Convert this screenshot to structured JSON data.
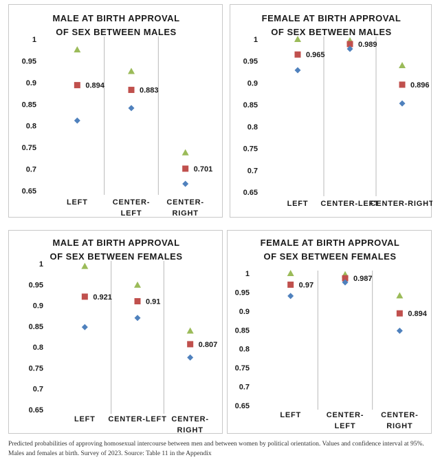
{
  "colors": {
    "upper": "#9bbb59",
    "point": "#c0504d",
    "lower": "#4f81bd",
    "divider": "#b8b8b8"
  },
  "caption": "Predicted probabilities of approving homosexual intercourse between men and between women by political orientation. Values and confidence interval at 95%. Males and females at birth. Survey of 2023. Source: Table 11 in the Appendix",
  "chart_data": [
    {
      "type": "scatter",
      "title": [
        "MALE AT BIRTH APPROVAL",
        "OF  SEX BETWEEN MALES"
      ],
      "categories": [
        [
          "LEFT"
        ],
        [
          "CENTER-",
          "LEFT"
        ],
        [
          "CENTER-",
          "RIGHT"
        ]
      ],
      "ylim": [
        0.65,
        1
      ],
      "yticks": [
        "1",
        "0.95",
        "0.9",
        "0.85",
        "0.8",
        "0.75",
        "0.7",
        "0.65"
      ],
      "series": [
        {
          "role": "upper",
          "values": [
            0.976,
            0.926,
            0.738
          ]
        },
        {
          "role": "point",
          "values": [
            0.894,
            0.883,
            0.701
          ],
          "labels": [
            "0.894",
            "0.883",
            "0.701"
          ]
        },
        {
          "role": "lower",
          "values": [
            0.812,
            0.841,
            0.666
          ]
        }
      ]
    },
    {
      "type": "scatter",
      "title": [
        "FEMALE AT BIRTH APPROVAL",
        "OF SEX BETWEEN MALES"
      ],
      "categories": [
        [
          "LEFT"
        ],
        [
          "CENTER-LEFT"
        ],
        [
          "CENTER-RIGHT"
        ]
      ],
      "ylim": [
        0.65,
        1
      ],
      "yticks": [
        "1",
        "0.95",
        "0.9",
        "0.85",
        "0.8",
        "0.75",
        "0.7",
        "0.65"
      ],
      "series": [
        {
          "role": "upper",
          "values": [
            1.0,
            0.997,
            0.94
          ]
        },
        {
          "role": "point",
          "values": [
            0.965,
            0.989,
            0.896
          ],
          "labels": [
            "0.965",
            "0.989",
            "0.896"
          ]
        },
        {
          "role": "lower",
          "values": [
            0.929,
            0.978,
            0.853
          ]
        }
      ]
    },
    {
      "type": "scatter",
      "title": [
        "MALE AT BIRTH APPROVAL",
        "OF SEX BETWEEN FEMALES"
      ],
      "categories": [
        [
          "LEFT"
        ],
        [
          "CENTER-LEFT"
        ],
        [
          "CENTER-",
          "RIGHT"
        ]
      ],
      "ylim": [
        0.65,
        1
      ],
      "yticks": [
        "1",
        "0.95",
        "0.9",
        "0.85",
        "0.8",
        "0.75",
        "0.7",
        "0.65"
      ],
      "series": [
        {
          "role": "upper",
          "values": [
            0.994,
            0.949,
            0.839
          ]
        },
        {
          "role": "point",
          "values": [
            0.921,
            0.91,
            0.807
          ],
          "labels": [
            "0.921",
            "0.91",
            "0.807"
          ]
        },
        {
          "role": "lower",
          "values": [
            0.848,
            0.87,
            0.775
          ]
        }
      ]
    },
    {
      "type": "scatter",
      "title": [
        "FEMALE AT BIRTH APPROVAL",
        "OF SEX BETWEEN FEMALES"
      ],
      "categories": [
        [
          "LEFT"
        ],
        [
          "CENTER-",
          "LEFT"
        ],
        [
          "CENTER-",
          "RIGHT"
        ]
      ],
      "ylim": [
        0.65,
        1
      ],
      "yticks": [
        "1",
        "0.95",
        "0.9",
        "0.85",
        "0.8",
        "0.75",
        "0.7",
        "0.65"
      ],
      "series": [
        {
          "role": "upper",
          "values": [
            1.0,
            0.997,
            0.941
          ]
        },
        {
          "role": "point",
          "values": [
            0.97,
            0.987,
            0.894
          ],
          "labels": [
            "0.97",
            "0.987",
            "0.894"
          ]
        },
        {
          "role": "lower",
          "values": [
            0.94,
            0.976,
            0.848
          ]
        }
      ]
    }
  ]
}
